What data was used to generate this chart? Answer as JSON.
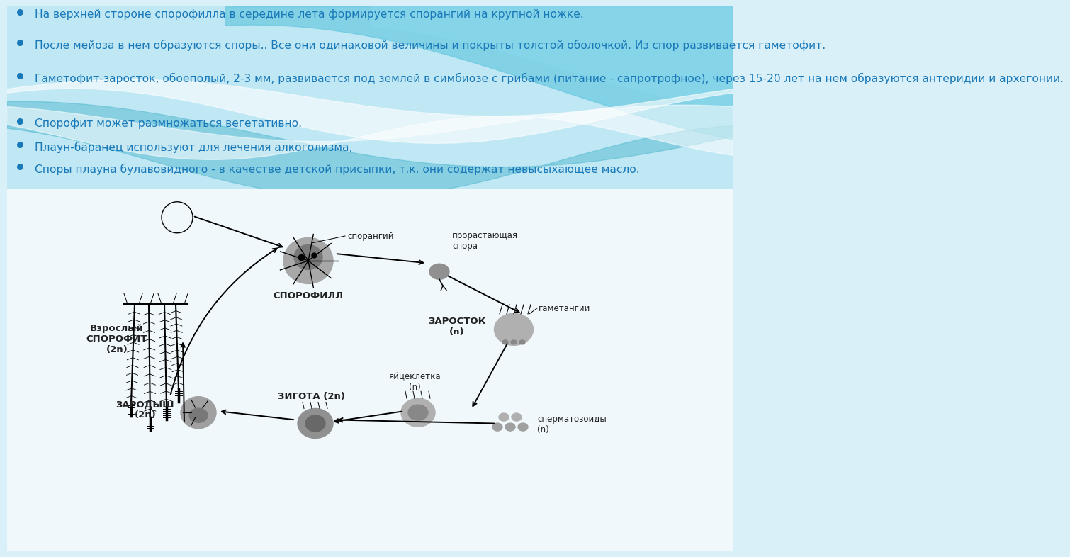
{
  "background_top_color": "#cceef8",
  "background_bottom_color": "#f0f8fc",
  "wave_teal": "#5bbdd4",
  "wave_light": "#90d8ec",
  "wave_white": "#daf2f8",
  "bullet_color": "#1878b8",
  "bullet_points": [
    "На верхней стороне спорофилла в середине лета формируется спорангий на крупной ножке.",
    "После мейоза в нем образуются споры.. Все они одинаковой величины и покрыты толстой оболочкой. Из спор развивается гаметофит.",
    "Гаметофит-заросток, обоеполый, 2-3 мм, развивается под землей в симбиозе с грибами (питание - сапротрофное), через 15-20 лет на нем образуются антеридии и архегонии.",
    "Спорофит может размножаться вегетативно.",
    "Плаун-баранец используют для лечения алкоголизма,",
    "Споры плауна булавовидного - в качестве детской присыпки, т.к. они содержат невысыхающее масло."
  ],
  "label_sporofill": "СПОРОФИЛЛ",
  "label_sporangiy": "спорангий",
  "label_spora": "прорастающая\nспора",
  "label_zarostok": "ЗАРОСТОК\n(n)",
  "label_gametangii": "гаметангии",
  "label_yaycekletka": "яйцеклетка\n(n)",
  "label_spermatozoid": "сперматозоиды\n(n)",
  "label_zigota": "ЗИГОТА (2n)",
  "label_zarodysh": "ЗАРОДЫШ\n(2n)",
  "label_sporofit": "Взрослый\nСПОРОФИТ\n(2n)",
  "text_color": "#222222",
  "diagram_bg": "#f5f5f5"
}
